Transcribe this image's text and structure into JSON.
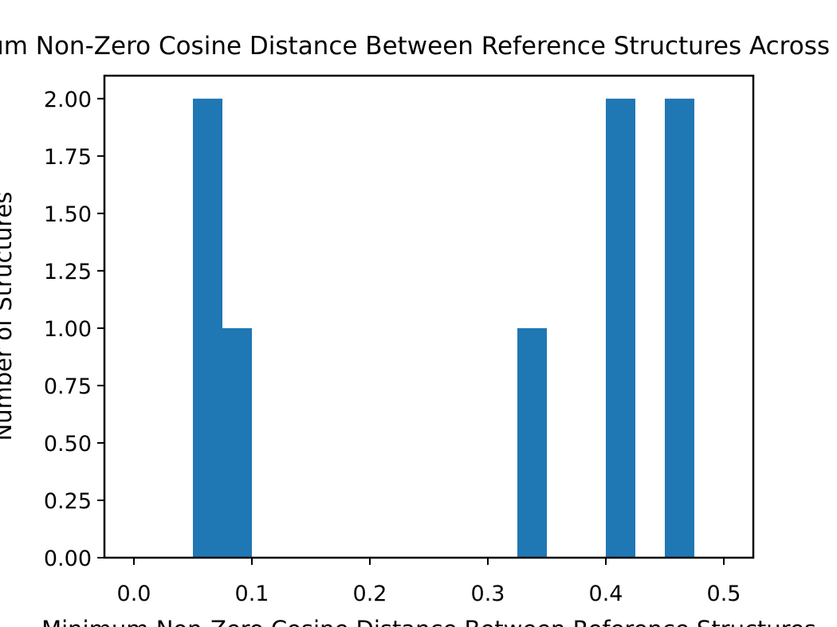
{
  "chart_data": {
    "type": "bar",
    "title": "Minimum Non-Zero Cosine Distance Between Reference Structures Across Libraries",
    "xlabel": "Minimum Non-Zero Cosine Distance Between Reference Structures",
    "ylabel": "Number of Structures",
    "xlim": [
      -0.025,
      0.525
    ],
    "ylim": [
      0,
      2.1
    ],
    "bin_width": 0.025,
    "bins": [
      {
        "x0": 0.05,
        "x1": 0.075,
        "count": 2
      },
      {
        "x0": 0.075,
        "x1": 0.1,
        "count": 1
      },
      {
        "x0": 0.325,
        "x1": 0.35,
        "count": 1
      },
      {
        "x0": 0.4,
        "x1": 0.425,
        "count": 2
      },
      {
        "x0": 0.45,
        "x1": 0.475,
        "count": 2
      }
    ],
    "x_ticks": [
      "0.0",
      "0.1",
      "0.2",
      "0.3",
      "0.4",
      "0.5"
    ],
    "y_ticks": [
      "0.00",
      "0.25",
      "0.50",
      "0.75",
      "1.00",
      "1.25",
      "1.50",
      "1.75",
      "2.00"
    ],
    "bar_color": "#1f77b4",
    "grid": false,
    "legend": "none"
  }
}
